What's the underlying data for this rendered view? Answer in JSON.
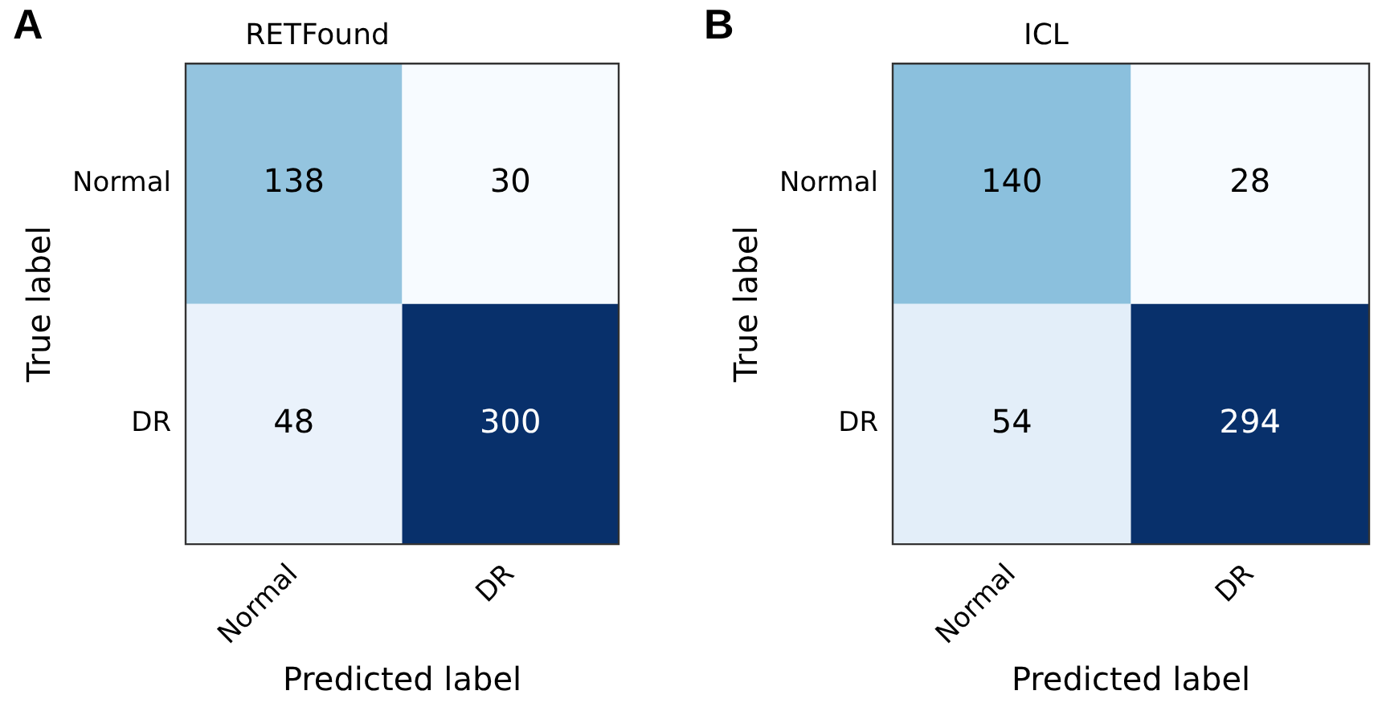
{
  "chart_data": [
    {
      "type": "heatmap",
      "title": "RETFound",
      "annotations": [
        "A"
      ],
      "xlabel": "Predicted label",
      "ylabel": "True label",
      "categories": [
        "Normal",
        "DR"
      ],
      "y_categories": [
        "Normal",
        "DR"
      ],
      "cells": [
        [
          138,
          30
        ],
        [
          48,
          300
        ]
      ],
      "data_labels": true
    },
    {
      "type": "heatmap",
      "title": "ICL",
      "annotations": [
        "B"
      ],
      "xlabel": "Predicted label",
      "ylabel": "True label",
      "categories": [
        "Normal",
        "DR"
      ],
      "y_categories": [
        "Normal",
        "DR"
      ],
      "cells": [
        [
          140,
          28
        ],
        [
          54,
          294
        ]
      ],
      "data_labels": true
    }
  ]
}
